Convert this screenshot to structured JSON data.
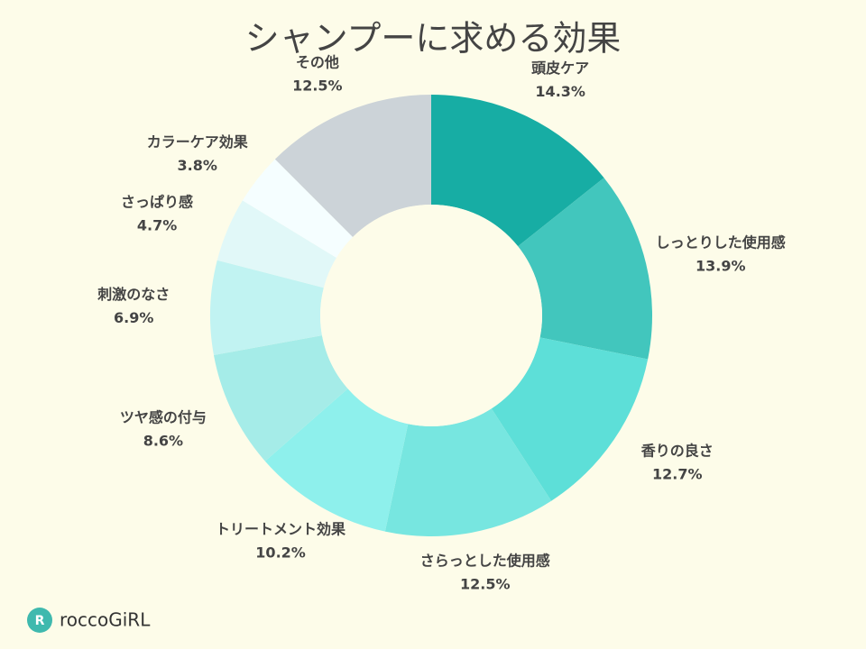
{
  "chart_data": {
    "type": "pie",
    "title": "シャンプーに求める効果",
    "categories": [
      "頭皮ケア",
      "しっとりした使用感",
      "香りの良さ",
      "さらっとした使用感",
      "トリートメント効果",
      "ツヤ感の付与",
      "刺激のなさ",
      "さっぱり感",
      "カラーケア効果",
      "その他"
    ],
    "values": [
      14.3,
      13.9,
      12.7,
      12.5,
      10.2,
      8.6,
      6.9,
      4.7,
      3.8,
      12.5
    ],
    "value_labels": [
      "14.3%",
      "13.9%",
      "12.7%",
      "12.5%",
      "10.2%",
      "8.6%",
      "6.9%",
      "4.7%",
      "3.8%",
      "12.5%"
    ],
    "colors": [
      "#17ada4",
      "#42c6bd",
      "#5ddfd8",
      "#77e6e0",
      "#8ef0ec",
      "#a5ece8",
      "#c1f3f2",
      "#e1f8f8",
      "#f5feff",
      "#ccd3d8"
    ]
  },
  "logo": "roccoGiRL"
}
